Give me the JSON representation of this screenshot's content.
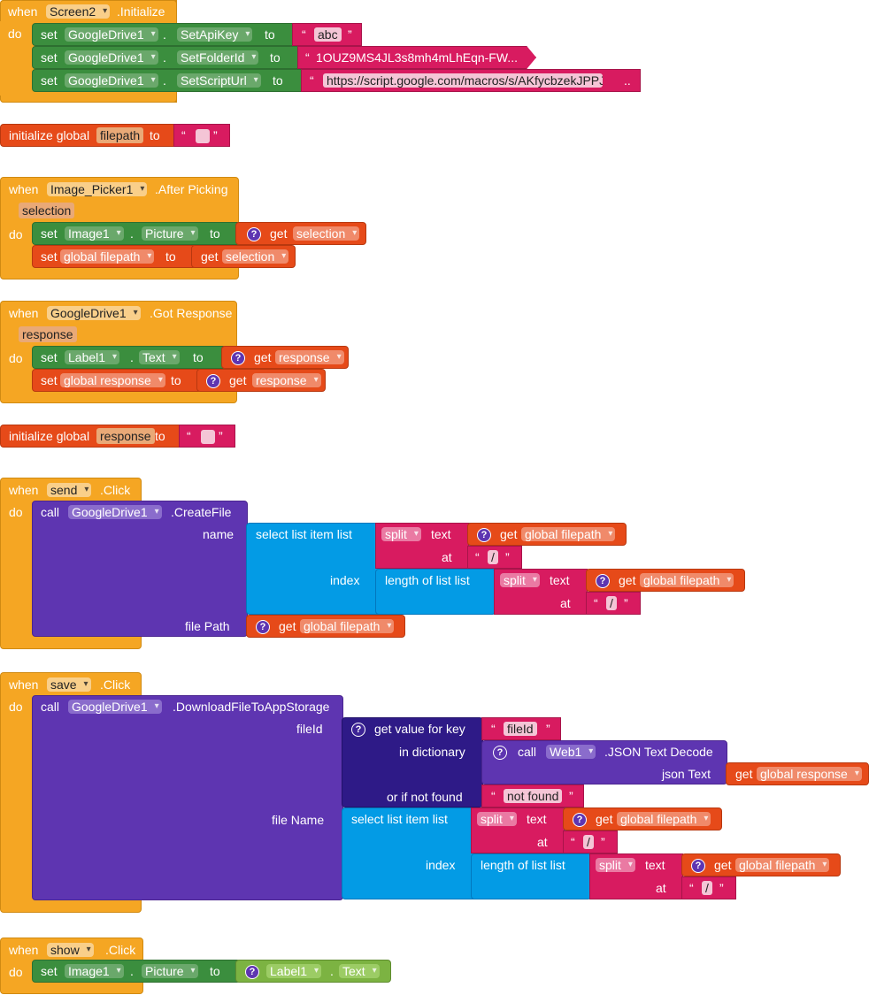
{
  "kw": {
    "when": "when",
    "do": "do",
    "set": "set",
    "to": "to",
    "get": "get",
    "call": "call",
    "dot": ".",
    "open_quote": "“",
    "close_quote": "”",
    "initialize_global": "initialize global",
    "global_prefix": "global"
  },
  "screen_init": {
    "component": "Screen2",
    "event": ".Initialize",
    "rows": [
      {
        "component": "GoogleDrive1",
        "property": "SetApiKey",
        "value": "abc"
      },
      {
        "component": "GoogleDrive1",
        "property": "SetFolderId",
        "value": "1OUZ9MS4JL3s8mh4mLhEqn-FW..."
      },
      {
        "component": "GoogleDrive1",
        "property": "SetScriptUrl",
        "value": "https://script.google.com/macros/s/AKfycbzekJPPJ",
        "ellipsis": ".."
      }
    ]
  },
  "init_filepath": {
    "name": "filepath"
  },
  "image_picker": {
    "component": "Image_Picker1",
    "event": ".After Picking",
    "param": "selection",
    "set_component": "Image1",
    "set_property": "Picture",
    "get_var": "selection",
    "global_var": "global filepath"
  },
  "got_response": {
    "component": "GoogleDrive1",
    "event": ".Got Response",
    "param": "response",
    "set_component": "Label1",
    "set_property": "Text",
    "get_var": "response",
    "global_var": "global response"
  },
  "init_response": {
    "name": "response"
  },
  "send_click": {
    "component": "send",
    "event": ".Click",
    "call_component": "GoogleDrive1",
    "method": ".CreateFile",
    "name_label": "name",
    "index_label": "index",
    "file_path_label": "file Path",
    "select_list_item": "select list item  list",
    "length_of_list": "length of list  list",
    "split": "split",
    "text_label": "text",
    "at_label": "at",
    "sep": "/",
    "global_filepath": "global filepath"
  },
  "save_click": {
    "component": "save",
    "event": ".Click",
    "call_component": "GoogleDrive1",
    "method": ".DownloadFileToAppStorage",
    "fileid_label": "fileId",
    "get_value_for_key": "get value for key",
    "key": "fileId",
    "in_dictionary": "in dictionary",
    "web_component": "Web1",
    "json_decode": ".JSON Text Decode",
    "json_text": "json Text",
    "global_response": "global response",
    "or_if_not_found": "or if not found",
    "not_found": "not found",
    "file_name_label": "file Name",
    "index_label": "index",
    "select_list_item": "select list item  list",
    "length_of_list": "length of list  list",
    "split": "split",
    "text_label": "text",
    "at_label": "at",
    "sep": "/",
    "global_filepath": "global filepath"
  },
  "show_click": {
    "component": "show",
    "event": ".Click",
    "set_component": "Image1",
    "set_property": "Picture",
    "src_component": "Label1",
    "src_property": "Text"
  }
}
